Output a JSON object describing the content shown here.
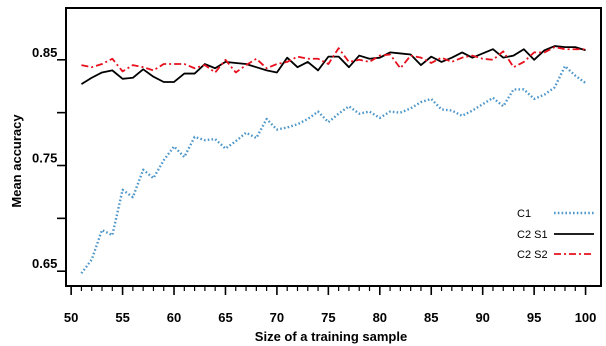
{
  "chart_data": {
    "type": "line",
    "title": "",
    "xlabel": "Size of a training sample",
    "ylabel": "Mean accuracy",
    "xlim": [
      49.5,
      101.5
    ],
    "ylim": [
      0.636,
      0.899
    ],
    "x_tick_labels": [
      "50",
      "55",
      "60",
      "65",
      "70",
      "75",
      "80",
      "85",
      "90",
      "95",
      "100"
    ],
    "y_tick_labels": [
      "0.65",
      "0.75",
      "0.85"
    ],
    "y_minor_ticks": [
      0.7,
      0.8
    ],
    "grid": false,
    "legend_position": "bottom-right",
    "x": [
      51,
      52,
      53,
      54,
      55,
      56,
      57,
      58,
      59,
      60,
      61,
      62,
      63,
      64,
      65,
      66,
      67,
      68,
      69,
      70,
      71,
      72,
      73,
      74,
      75,
      76,
      77,
      78,
      79,
      80,
      81,
      82,
      83,
      84,
      85,
      86,
      87,
      88,
      89,
      90,
      91,
      92,
      93,
      94,
      95,
      96,
      97,
      98,
      99,
      100
    ],
    "series": [
      {
        "name": "C1",
        "color": "#4f97c9",
        "style": "dotted",
        "values": [
          0.648,
          0.661,
          0.689,
          0.684,
          0.727,
          0.72,
          0.746,
          0.738,
          0.755,
          0.768,
          0.758,
          0.777,
          0.774,
          0.775,
          0.766,
          0.773,
          0.781,
          0.776,
          0.794,
          0.784,
          0.786,
          0.789,
          0.794,
          0.801,
          0.791,
          0.799,
          0.806,
          0.799,
          0.801,
          0.795,
          0.801,
          0.8,
          0.804,
          0.81,
          0.813,
          0.803,
          0.802,
          0.797,
          0.802,
          0.808,
          0.814,
          0.806,
          0.822,
          0.822,
          0.813,
          0.817,
          0.824,
          0.844,
          0.835,
          0.828
        ]
      },
      {
        "name": "C2 S1",
        "color": "#000000",
        "style": "solid",
        "values": [
          0.827,
          0.833,
          0.838,
          0.84,
          0.832,
          0.833,
          0.841,
          0.834,
          0.829,
          0.829,
          0.837,
          0.837,
          0.846,
          0.842,
          0.848,
          0.847,
          0.846,
          0.843,
          0.84,
          0.838,
          0.852,
          0.843,
          0.848,
          0.84,
          0.853,
          0.853,
          0.843,
          0.854,
          0.851,
          0.852,
          0.857,
          0.856,
          0.855,
          0.845,
          0.853,
          0.848,
          0.852,
          0.857,
          0.852,
          0.856,
          0.86,
          0.852,
          0.854,
          0.86,
          0.85,
          0.859,
          0.863,
          0.862,
          0.862,
          0.859
        ]
      },
      {
        "name": "C2 S2",
        "color": "#e8101d",
        "style": "dashdot",
        "values": [
          0.845,
          0.843,
          0.846,
          0.851,
          0.839,
          0.845,
          0.843,
          0.84,
          0.846,
          0.846,
          0.846,
          0.842,
          0.845,
          0.838,
          0.85,
          0.838,
          0.845,
          0.851,
          0.842,
          0.846,
          0.848,
          0.853,
          0.851,
          0.851,
          0.846,
          0.861,
          0.848,
          0.85,
          0.848,
          0.854,
          0.855,
          0.842,
          0.854,
          0.852,
          0.847,
          0.852,
          0.848,
          0.852,
          0.854,
          0.851,
          0.85,
          0.858,
          0.843,
          0.848,
          0.857,
          0.857,
          0.862,
          0.86,
          0.86,
          0.86
        ]
      }
    ]
  }
}
